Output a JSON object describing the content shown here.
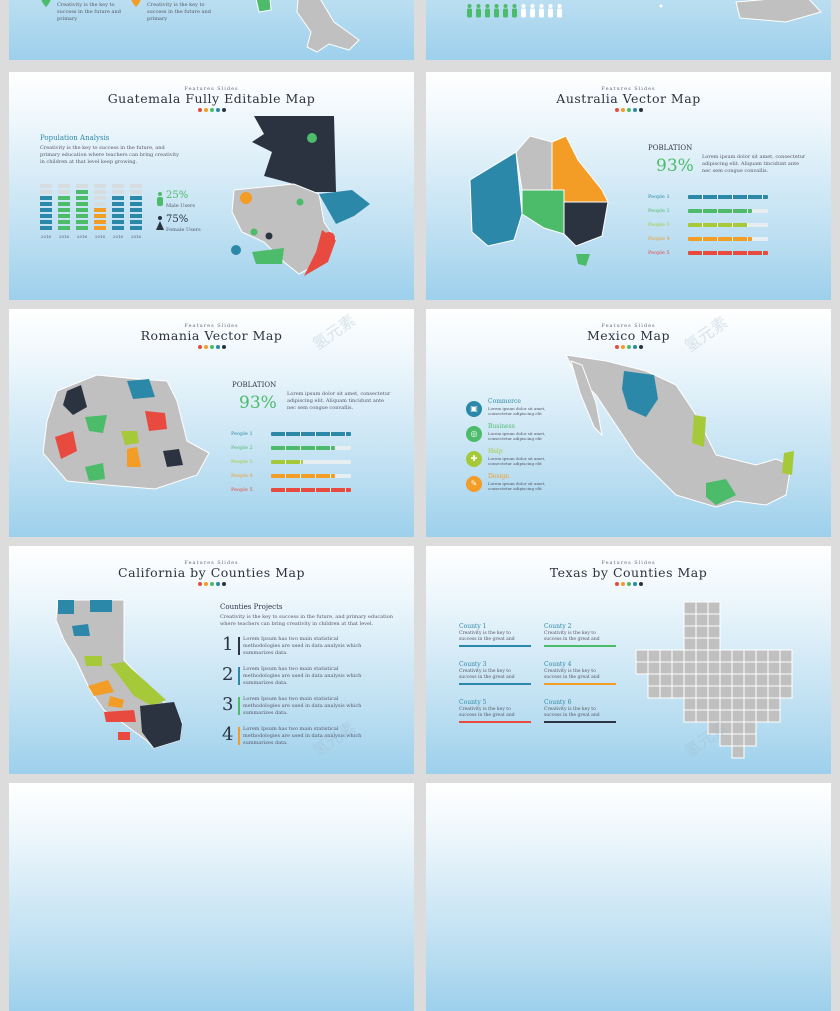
{
  "common": {
    "kicker": "Features Slides",
    "dot_colors": [
      "#e84a3f",
      "#f39c26",
      "#4cbb6a",
      "#2c88a8",
      "#2b3340"
    ],
    "watermark": "氢元素"
  },
  "top_slides": {
    "left_texts": [
      "Creativity is the key to success in the future and primary",
      "Creativity is the key to success in the future and primary"
    ],
    "people_filled": 6,
    "people_total": 11
  },
  "guatemala": {
    "title": "Guatemala Fully Editable Map",
    "section": "Population Analysis",
    "body": "Creativity is the key to success in the future, and primary education where teachers can bring creativity in children at that level keep growing.",
    "years": [
      "2016",
      "2016",
      "2016",
      "2016",
      "2016",
      "2016"
    ],
    "male_pct": "25%",
    "male_label": "Male Users",
    "female_pct": "75%",
    "female_label": "Female Users"
  },
  "australia": {
    "title": "Australia Vector Map",
    "pop_label": "POBLATION",
    "pct": "93%",
    "body": "Lorem ipsum dolor sit amet, consectetur adipiscing elit. Aliquam tincidunt ante nec sem congue convallis.",
    "people": [
      "People 1",
      "People 2",
      "People 3",
      "People 4",
      "People 5"
    ],
    "levels": [
      1.0,
      0.8,
      0.75,
      0.8,
      1.0
    ]
  },
  "romania": {
    "title": "Romania Vector Map",
    "pop_label": "POBLATION",
    "pct": "93%",
    "body": "Lorem ipsum dolor sit amet, consectetur adipiscing elit. Aliquam tincidunt ante nec sem congue convallis.",
    "people": [
      "People 1",
      "People 2",
      "People 3",
      "People 4",
      "People 5"
    ],
    "levels": [
      1.0,
      0.8,
      0.4,
      0.8,
      1.0
    ]
  },
  "mexico": {
    "title": "Mexico Map",
    "items": [
      {
        "label": "Commerce",
        "text": "Lorem ipsum dolor sit amet, consectetur adipiscing elit"
      },
      {
        "label": "Business",
        "text": "Lorem ipsum dolor sit amet, consectetur adipiscing elit"
      },
      {
        "label": "Help",
        "text": "Lorem ipsum dolor sit amet, consectetur adipiscing elit"
      },
      {
        "label": "Design",
        "text": "Lorem ipsum dolor sit amet, consectetur adipiscing elit"
      }
    ]
  },
  "california": {
    "title": "California by Counties Map",
    "section": "Counties Projects",
    "body": "Creativity is the key to success in the future, and primary education where teachers can bring creativity in children at that level.",
    "steps": [
      {
        "num": "1",
        "text": "Lorem Ipsum has two main statistical methodologies are used in data analysis which summarizes data."
      },
      {
        "num": "2",
        "text": "Lorem Ipsum has two main statistical methodologies are used in data analysis which summarizes data."
      },
      {
        "num": "3",
        "text": "Lorem Ipsum has two main statistical methodologies are used in data analysis which summarizes data."
      },
      {
        "num": "4",
        "text": "Lorem Ipsum has two main statistical methodologies are used in data analysis which summarizes data."
      }
    ]
  },
  "texas": {
    "title": "Texas by Counties Map",
    "counties": [
      {
        "name": "County 1",
        "text": "Creativity is the key to success in the great and"
      },
      {
        "name": "County 2",
        "text": "Creativity is the key to success in the great and"
      },
      {
        "name": "County 3",
        "text": "Creativity is the key to success in the great and"
      },
      {
        "name": "County 4",
        "text": "Creativity is the key to success in the great and"
      },
      {
        "name": "County 5",
        "text": "Creativity is the key to success in the great and"
      },
      {
        "name": "County 6",
        "text": "Creativity is the key to success in the great and"
      }
    ]
  }
}
